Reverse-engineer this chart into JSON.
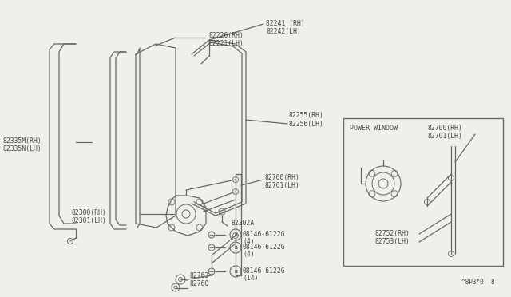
{
  "bg_color": "#f0f0eb",
  "line_color": "#666666",
  "text_color": "#444444",
  "footer": "^8P3*0  8",
  "label_fs": 5.8,
  "parts_labels": {
    "82220": "82220(RH)\n82221(LH)",
    "82241": "82241 (RH)\n82242(LH)",
    "82255": "82255(RH)\n82256(LH)",
    "82302A": "82302A",
    "82335M": "82335M(RH)\n82335N(LH)",
    "bolt4a": "B 08146-6122G\n(4)",
    "82300": "82300(RH)\n82301(LH)",
    "82700": "82700(RH)\n82701(LH)",
    "bolt4b": "B 08146-6122G\n(4)",
    "82763": "82763",
    "82760": "82760",
    "bolt14": "B 08146-6122G\n(14)",
    "pw_title": "POWER WINDOW",
    "pw_82700": "82700(RH)\n82701(LH)",
    "pw_82752": "82752(RH)\n82753(LH)"
  }
}
